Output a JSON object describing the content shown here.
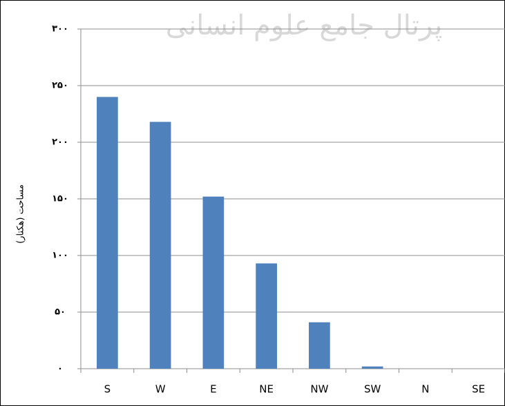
{
  "chart_data": {
    "type": "bar",
    "watermark": "پرتال جامع علوم انسانی",
    "y_label": "مساحت (هکتار)",
    "categories": [
      "S",
      "W",
      "E",
      "NE",
      "NW",
      "SW",
      "N",
      "SE"
    ],
    "values": [
      240,
      218,
      152,
      93,
      41,
      2,
      0,
      0
    ],
    "color": "#4f81bd",
    "ylim": [
      0,
      300
    ],
    "yticks": [
      {
        "value": 0,
        "label": "۰"
      },
      {
        "value": 50,
        "label": "۵۰"
      },
      {
        "value": 100,
        "label": "۱۰۰"
      },
      {
        "value": 150,
        "label": "۱۵۰"
      },
      {
        "value": 200,
        "label": "۲۰۰"
      },
      {
        "value": 250,
        "label": "۲۵۰"
      },
      {
        "value": 300,
        "label": "۳۰۰"
      }
    ],
    "grid": true
  }
}
